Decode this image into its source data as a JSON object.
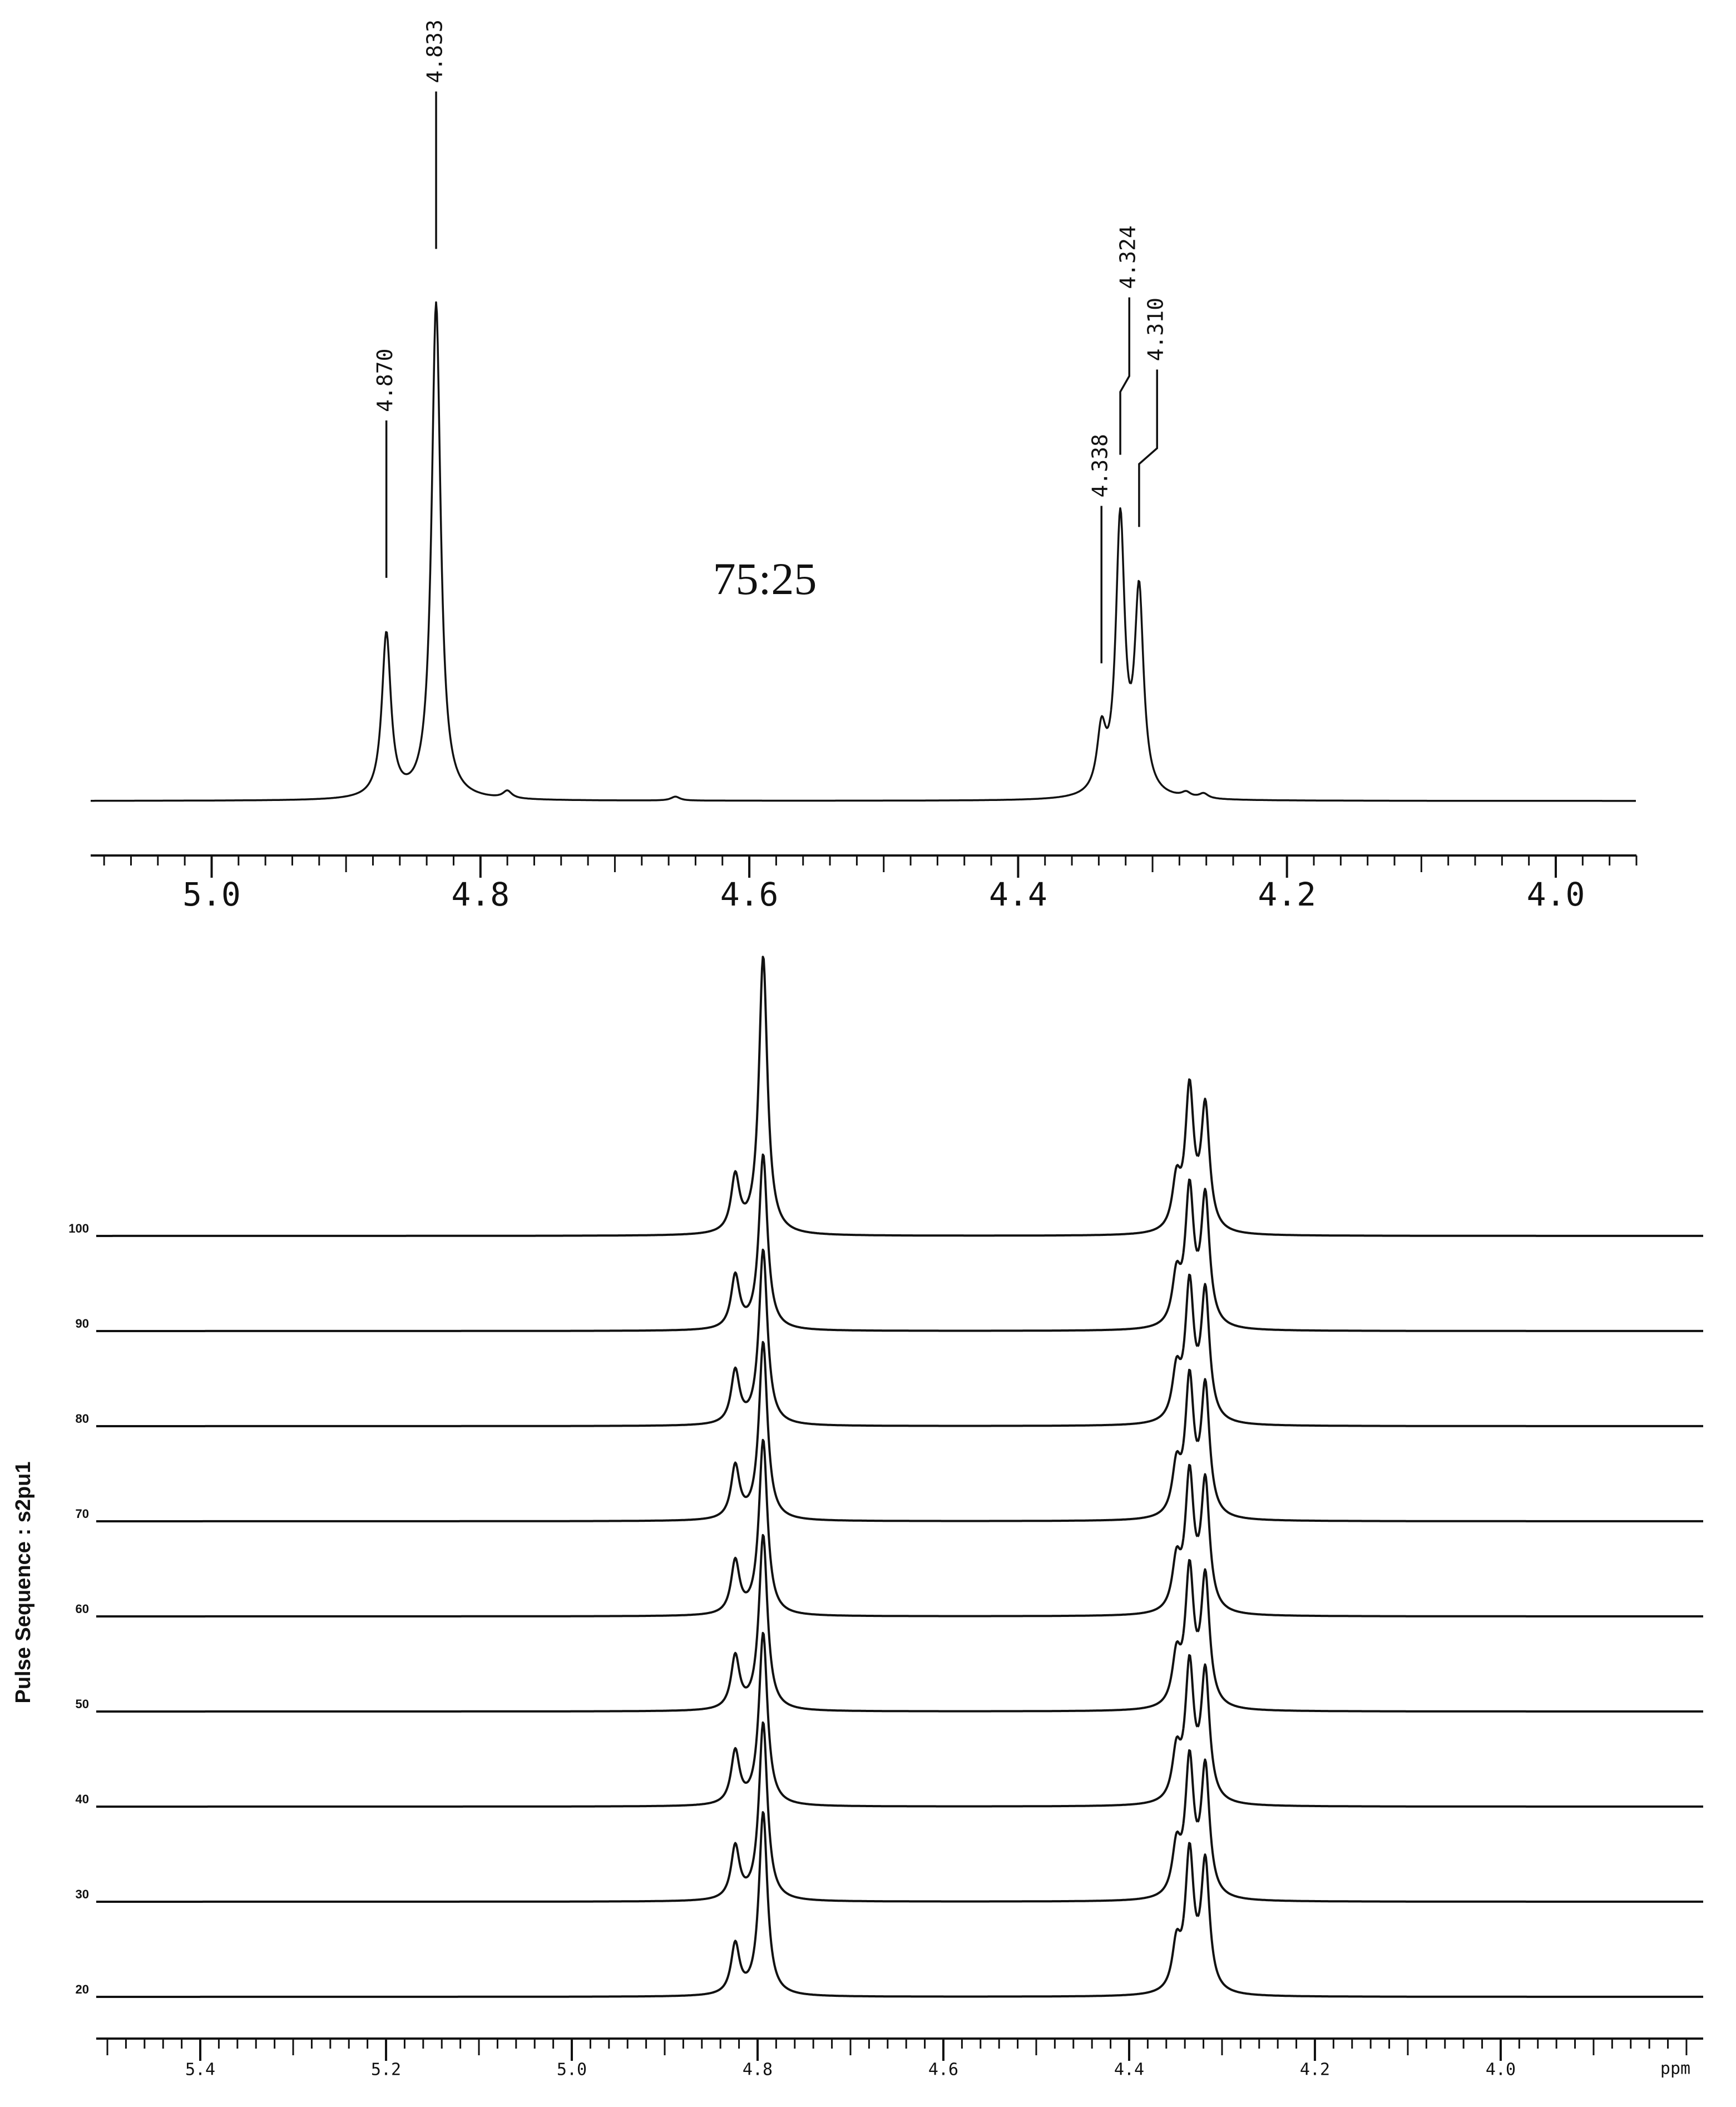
{
  "chart_data": [
    {
      "type": "spectrum",
      "annotation": "75:25",
      "peaks": {
        "x": [
          4.87,
          4.833,
          4.78,
          4.655,
          4.338,
          4.324,
          4.31,
          4.275,
          4.262
        ],
        "values": [
          33,
          100,
          1.5,
          0.8,
          12,
          55,
          40,
          1,
          1
        ]
      },
      "peak_labels": [
        {
          "value": 4.87,
          "label": "4.870"
        },
        {
          "value": 4.833,
          "label": "4.833"
        },
        {
          "value": 4.338,
          "label": "4.338"
        },
        {
          "value": 4.324,
          "label": "4.324"
        },
        {
          "value": 4.31,
          "label": "4.310"
        }
      ],
      "xlim": [
        5.09,
        3.94
      ],
      "xticks": [
        {
          "value": 5,
          "label": "5.0"
        },
        4.8,
        4.6,
        4.4,
        4.2,
        {
          "value": 4,
          "label": "4.0"
        }
      ],
      "xminor": 0.02
    },
    {
      "type": "stacked_spectrum",
      "ylabel": "Pulse Sequence : s2pu1",
      "xlabel": "ppm",
      "peak_x": [
        4.824,
        4.794,
        4.349,
        4.335,
        4.318
      ],
      "series": [
        {
          "name": "100",
          "values": [
            20,
            100,
            17,
            50,
            44
          ]
        },
        {
          "name": "90",
          "values": [
            19,
            63,
            17,
            48,
            46
          ]
        },
        {
          "name": "80",
          "values": [
            19,
            63,
            17,
            48,
            46
          ]
        },
        {
          "name": "70",
          "values": [
            19,
            64,
            17,
            48,
            46
          ]
        },
        {
          "name": "60",
          "values": [
            19,
            63,
            17,
            48,
            46
          ]
        },
        {
          "name": "50",
          "values": [
            19,
            63,
            17,
            48,
            46
          ]
        },
        {
          "name": "40",
          "values": [
            19,
            62,
            17,
            48,
            46
          ]
        },
        {
          "name": "30",
          "values": [
            19,
            64,
            17,
            48,
            46
          ]
        },
        {
          "name": "20",
          "values": [
            18,
            66,
            16,
            49,
            46
          ]
        }
      ],
      "xlim": [
        5.512,
        3.782
      ],
      "xticks": [
        5.4,
        5.2,
        {
          "value": 5,
          "label": "5.0"
        },
        4.8,
        4.6,
        4.4,
        4.2,
        {
          "value": 4,
          "label": "4.0"
        }
      ],
      "xminor": 0.02
    }
  ]
}
